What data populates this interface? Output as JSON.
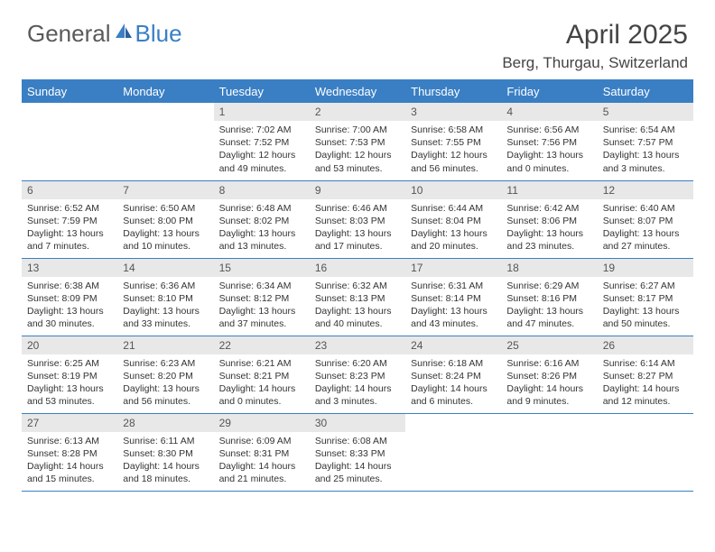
{
  "logo": {
    "text1": "General",
    "text2": "Blue"
  },
  "title": "April 2025",
  "location": "Berg, Thurgau, Switzerland",
  "colors": {
    "header_bg": "#3a7fc4",
    "header_text": "#ffffff",
    "daynum_bg": "#e8e8e8",
    "border": "#3a7fc4",
    "text": "#333333"
  },
  "weekdays": [
    "Sunday",
    "Monday",
    "Tuesday",
    "Wednesday",
    "Thursday",
    "Friday",
    "Saturday"
  ],
  "weeks": [
    [
      null,
      null,
      {
        "n": "1",
        "sr": "7:02 AM",
        "ss": "7:52 PM",
        "dl": "12 hours and 49 minutes."
      },
      {
        "n": "2",
        "sr": "7:00 AM",
        "ss": "7:53 PM",
        "dl": "12 hours and 53 minutes."
      },
      {
        "n": "3",
        "sr": "6:58 AM",
        "ss": "7:55 PM",
        "dl": "12 hours and 56 minutes."
      },
      {
        "n": "4",
        "sr": "6:56 AM",
        "ss": "7:56 PM",
        "dl": "13 hours and 0 minutes."
      },
      {
        "n": "5",
        "sr": "6:54 AM",
        "ss": "7:57 PM",
        "dl": "13 hours and 3 minutes."
      }
    ],
    [
      {
        "n": "6",
        "sr": "6:52 AM",
        "ss": "7:59 PM",
        "dl": "13 hours and 7 minutes."
      },
      {
        "n": "7",
        "sr": "6:50 AM",
        "ss": "8:00 PM",
        "dl": "13 hours and 10 minutes."
      },
      {
        "n": "8",
        "sr": "6:48 AM",
        "ss": "8:02 PM",
        "dl": "13 hours and 13 minutes."
      },
      {
        "n": "9",
        "sr": "6:46 AM",
        "ss": "8:03 PM",
        "dl": "13 hours and 17 minutes."
      },
      {
        "n": "10",
        "sr": "6:44 AM",
        "ss": "8:04 PM",
        "dl": "13 hours and 20 minutes."
      },
      {
        "n": "11",
        "sr": "6:42 AM",
        "ss": "8:06 PM",
        "dl": "13 hours and 23 minutes."
      },
      {
        "n": "12",
        "sr": "6:40 AM",
        "ss": "8:07 PM",
        "dl": "13 hours and 27 minutes."
      }
    ],
    [
      {
        "n": "13",
        "sr": "6:38 AM",
        "ss": "8:09 PM",
        "dl": "13 hours and 30 minutes."
      },
      {
        "n": "14",
        "sr": "6:36 AM",
        "ss": "8:10 PM",
        "dl": "13 hours and 33 minutes."
      },
      {
        "n": "15",
        "sr": "6:34 AM",
        "ss": "8:12 PM",
        "dl": "13 hours and 37 minutes."
      },
      {
        "n": "16",
        "sr": "6:32 AM",
        "ss": "8:13 PM",
        "dl": "13 hours and 40 minutes."
      },
      {
        "n": "17",
        "sr": "6:31 AM",
        "ss": "8:14 PM",
        "dl": "13 hours and 43 minutes."
      },
      {
        "n": "18",
        "sr": "6:29 AM",
        "ss": "8:16 PM",
        "dl": "13 hours and 47 minutes."
      },
      {
        "n": "19",
        "sr": "6:27 AM",
        "ss": "8:17 PM",
        "dl": "13 hours and 50 minutes."
      }
    ],
    [
      {
        "n": "20",
        "sr": "6:25 AM",
        "ss": "8:19 PM",
        "dl": "13 hours and 53 minutes."
      },
      {
        "n": "21",
        "sr": "6:23 AM",
        "ss": "8:20 PM",
        "dl": "13 hours and 56 minutes."
      },
      {
        "n": "22",
        "sr": "6:21 AM",
        "ss": "8:21 PM",
        "dl": "14 hours and 0 minutes."
      },
      {
        "n": "23",
        "sr": "6:20 AM",
        "ss": "8:23 PM",
        "dl": "14 hours and 3 minutes."
      },
      {
        "n": "24",
        "sr": "6:18 AM",
        "ss": "8:24 PM",
        "dl": "14 hours and 6 minutes."
      },
      {
        "n": "25",
        "sr": "6:16 AM",
        "ss": "8:26 PM",
        "dl": "14 hours and 9 minutes."
      },
      {
        "n": "26",
        "sr": "6:14 AM",
        "ss": "8:27 PM",
        "dl": "14 hours and 12 minutes."
      }
    ],
    [
      {
        "n": "27",
        "sr": "6:13 AM",
        "ss": "8:28 PM",
        "dl": "14 hours and 15 minutes."
      },
      {
        "n": "28",
        "sr": "6:11 AM",
        "ss": "8:30 PM",
        "dl": "14 hours and 18 minutes."
      },
      {
        "n": "29",
        "sr": "6:09 AM",
        "ss": "8:31 PM",
        "dl": "14 hours and 21 minutes."
      },
      {
        "n": "30",
        "sr": "6:08 AM",
        "ss": "8:33 PM",
        "dl": "14 hours and 25 minutes."
      },
      null,
      null,
      null
    ]
  ],
  "labels": {
    "sunrise": "Sunrise:",
    "sunset": "Sunset:",
    "daylight": "Daylight:"
  }
}
